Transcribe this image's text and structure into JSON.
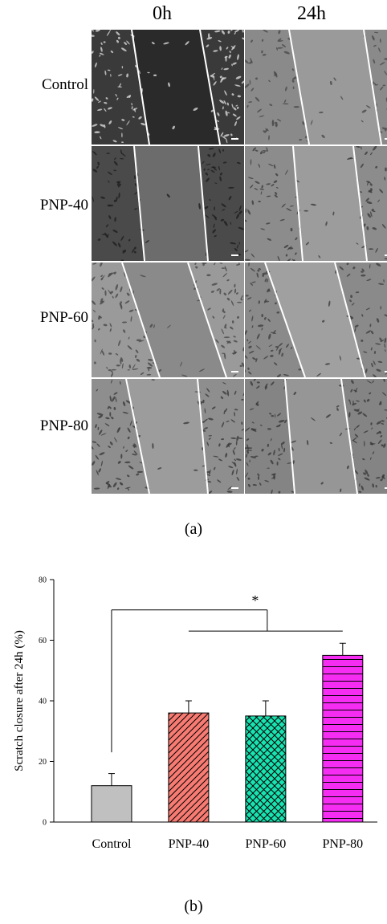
{
  "figure_a": {
    "tag": "(a)",
    "column_headers": [
      "0h",
      "24h"
    ],
    "row_labels": [
      "Control",
      "PNP-40",
      "PNP-60",
      "PNP-80"
    ]
  },
  "figure_b": {
    "tag": "(b)"
  },
  "chart_data": {
    "type": "bar",
    "categories": [
      "Control",
      "PNP-40",
      "PNP-60",
      "PNP-80"
    ],
    "values": [
      12,
      36,
      35,
      55
    ],
    "errors": [
      4,
      4,
      5,
      4
    ],
    "ylabel": "Scratch closure after 24h (%)",
    "xlabel": "",
    "ylim": [
      0,
      80
    ],
    "yticks": [
      0,
      20,
      40,
      60,
      80
    ],
    "colors": [
      "#c0c0c0",
      "#f77b72",
      "#19e3b1",
      "#f52cf2"
    ],
    "patterns": [
      "none",
      "diagonal",
      "crosshatch",
      "horizontal"
    ],
    "annotation": "*"
  }
}
